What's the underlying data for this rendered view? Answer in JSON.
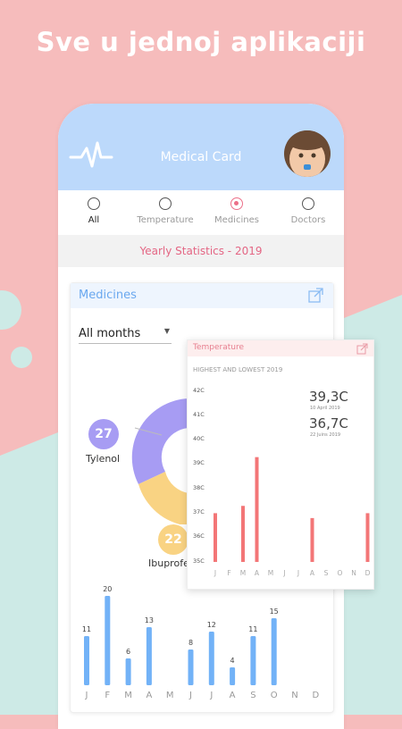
{
  "headline": "Sve u jednoj aplikaciji",
  "appbar": {
    "title": "Medical Card"
  },
  "tabs": [
    {
      "label": "All",
      "selected": false
    },
    {
      "label": "Temperature",
      "selected": false
    },
    {
      "label": "Medicines",
      "selected": true
    },
    {
      "label": "Doctors",
      "selected": false
    }
  ],
  "yearly": "Yearly Statistics - 2019",
  "medicines_card": {
    "title": "Medicines",
    "filter_value": "All months",
    "donut": [
      {
        "label": "Tylenol",
        "value": "27",
        "color": "#a79cf3"
      },
      {
        "label": "Ibuprofen",
        "value": "22",
        "color": "#f9d383"
      }
    ]
  },
  "temperature_popup": {
    "title": "Temperature",
    "subtitle": "HIGHEST AND LOWEST 2019",
    "highest": {
      "value": "39,3C",
      "date": "10 April 2019"
    },
    "lowest": {
      "value": "36,7C",
      "date": "22 Juins 2019"
    },
    "y_ticks": [
      "42C",
      "41C",
      "40C",
      "39C",
      "38C",
      "37C",
      "36C",
      "35C"
    ]
  },
  "chart_data": [
    {
      "type": "bar",
      "categories": [
        "J",
        "F",
        "M",
        "A",
        "M",
        "J",
        "J",
        "A",
        "S",
        "O",
        "N",
        "D"
      ],
      "values": [
        11,
        20,
        6,
        13,
        null,
        8,
        12,
        4,
        11,
        15,
        null,
        null
      ],
      "ylim": [
        0,
        20
      ]
    },
    {
      "type": "bar",
      "title": "HIGHEST AND LOWEST 2019",
      "categories": [
        "J",
        "F",
        "M",
        "A",
        "M",
        "J",
        "J",
        "A",
        "S",
        "O",
        "N",
        "D"
      ],
      "values": [
        37.0,
        null,
        37.3,
        39.3,
        null,
        null,
        null,
        36.8,
        null,
        null,
        null,
        37.0
      ],
      "ylim": [
        35,
        42
      ]
    }
  ],
  "colors": {
    "bg_pink": "#f6bcbc",
    "bg_teal": "#cdeae6",
    "appbar": "#bcd9fb",
    "accent": "#ec6f88",
    "blue_bar": "#72b2f7",
    "red_bar": "#f37677"
  }
}
